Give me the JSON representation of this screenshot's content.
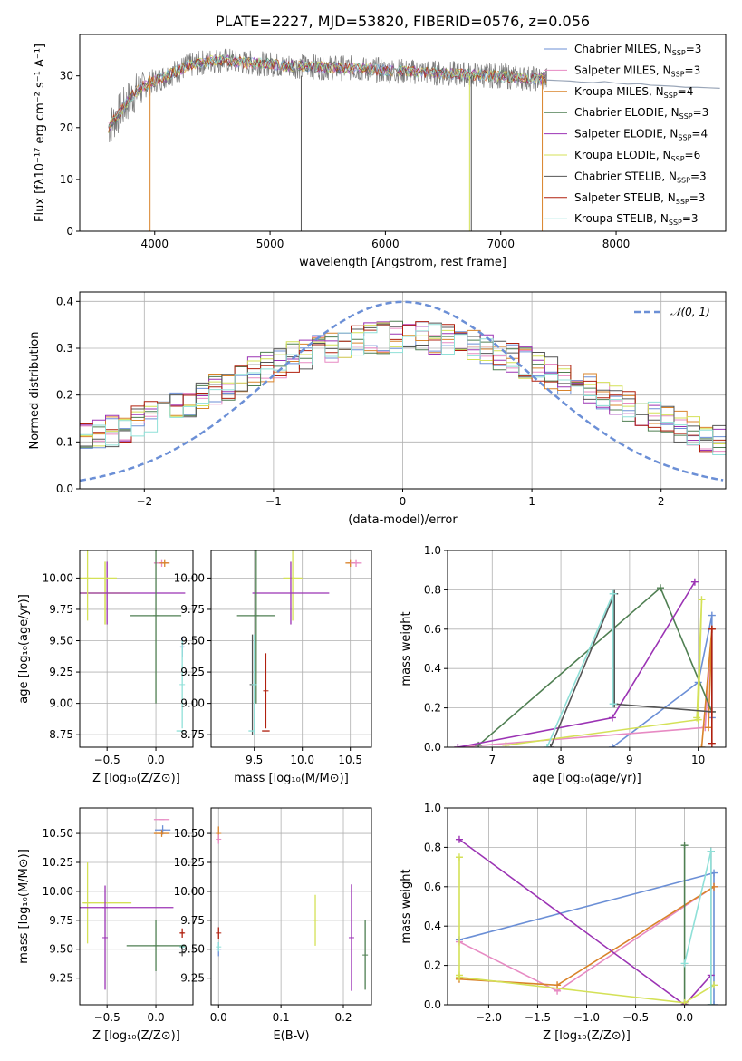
{
  "title": "PLATE=2227, MJD=53820, FIBERID=0576, z=0.056",
  "colors": {
    "chabrier_miles": "#6b8fd6",
    "salpeter_miles": "#e78ac3",
    "kroupa_miles": "#d9832a",
    "chabrier_elodie": "#4f7f52",
    "salpeter_elodie": "#9b33b4",
    "kroupa_elodie": "#d4e157",
    "chabrier_stelib": "#555555",
    "salpeter_stelib": "#b0200f",
    "kroupa_stelib": "#8fe0d8",
    "gaussian": "#6b8fd6"
  },
  "chart_data": [
    {
      "id": "spectrum",
      "type": "line",
      "title": "PLATE=2227, MJD=53820, FIBERID=0576, z=0.056",
      "xlabel": "wavelength [Angstrom, rest frame]",
      "ylabel": "Flux [fλ10⁻¹⁷ erg cm⁻² s⁻¹ A⁻¹]",
      "xlim": [
        3350,
        8950
      ],
      "ylim": [
        0,
        38
      ],
      "xticks": [
        "4000",
        "5000",
        "6000",
        "7000",
        "8000"
      ],
      "yticks": [
        "0",
        "10",
        "20",
        "30"
      ],
      "legend": [
        {
          "label": "Chabrier MILES, N",
          "sub": "SSP",
          "tail": "=3",
          "color": "#6b8fd6"
        },
        {
          "label": "Salpeter MILES, N",
          "sub": "SSP",
          "tail": "=3",
          "color": "#e78ac3"
        },
        {
          "label": "Kroupa MILES, N",
          "sub": "SSP",
          "tail": "=4",
          "color": "#d9832a"
        },
        {
          "label": "Chabrier ELODIE, N",
          "sub": "SSP",
          "tail": "=3",
          "color": "#4f7f52"
        },
        {
          "label": "Salpeter ELODIE, N",
          "sub": "SSP",
          "tail": "=4",
          "color": "#9b33b4"
        },
        {
          "label": "Kroupa ELODIE, N",
          "sub": "SSP",
          "tail": "=6",
          "color": "#d4e157"
        },
        {
          "label": "Chabrier STELIB, N",
          "sub": "SSP",
          "tail": "=3",
          "color": "#555555"
        },
        {
          "label": "Salpeter STELIB, N",
          "sub": "SSP",
          "tail": "=3",
          "color": "#b0200f"
        },
        {
          "label": "Kroupa STELIB, N",
          "sub": "SSP",
          "tail": "=3",
          "color": "#8fe0d8"
        }
      ],
      "continuum": {
        "x": [
          3600,
          3700,
          3800,
          3900,
          4000,
          4100,
          4200,
          4300,
          4400,
          4500,
          4600,
          4700,
          4800,
          4900,
          5000,
          5100,
          5200,
          5300,
          5400,
          5500,
          5600,
          5700,
          5800,
          5900,
          6000,
          6100,
          6200,
          6300,
          6400,
          6500,
          6600,
          6700,
          6800,
          6900,
          7000,
          7100,
          7200,
          7300,
          7400
        ],
        "y": [
          20,
          23,
          26,
          28,
          29,
          30,
          31,
          32,
          32.5,
          33,
          33,
          32.8,
          32.5,
          32.5,
          32.3,
          32,
          32,
          31.8,
          31.8,
          31.6,
          31.5,
          31.5,
          31.3,
          31.2,
          31,
          31,
          30.8,
          30.8,
          30.6,
          30.5,
          30.4,
          30.3,
          30.2,
          30.1,
          30,
          29.8,
          29.6,
          29.5,
          29.3
        ]
      },
      "data_end_x": 7400,
      "model_extension": {
        "x": [
          7400,
          7500,
          7600,
          7700,
          7800,
          7900,
          8000,
          8100,
          8200,
          8300,
          8400,
          8500,
          8600,
          8700,
          8800,
          8900
        ],
        "y": [
          29.2,
          29.1,
          29,
          28.8,
          28.7,
          28.9,
          28.6,
          28.4,
          28.5,
          28.2,
          28.1,
          28,
          27.8,
          27.8,
          27.7,
          27.6
        ]
      },
      "drops": [
        {
          "x": 3960,
          "color": "#d9832a"
        },
        {
          "x": 5270,
          "color": "#555555"
        },
        {
          "x": 6730,
          "color": "#d4e157"
        },
        {
          "x": 6745,
          "color": "#555555"
        },
        {
          "x": 7360,
          "color": "#d9832a"
        }
      ]
    },
    {
      "id": "residuals",
      "type": "histogram",
      "xlabel": "(data-model)/error",
      "ylabel": "Normed distribution",
      "xlim": [
        -2.5,
        2.5
      ],
      "ylim": [
        0,
        0.42
      ],
      "xticks": [
        "−2",
        "−1",
        "0",
        "1",
        "2"
      ],
      "yticks": [
        "0.0",
        "0.1",
        "0.2",
        "0.3",
        "0.4"
      ],
      "legend": [
        {
          "label": "𝒩(0, 1)",
          "color": "#6b8fd6"
        }
      ],
      "bin_width": 0.1
    },
    {
      "id": "age_vs_Z",
      "type": "errorbar",
      "xlabel": "Z [log₁₀(Z/Z⊙)]",
      "ylabel": "age  [log₁₀(age/yr)]",
      "xlim": [
        -0.78,
        0.38
      ],
      "ylim": [
        8.65,
        10.22
      ],
      "xticks": [
        "−0.5",
        "0.0"
      ],
      "yticks": [
        "8.75",
        "9.00",
        "9.25",
        "9.50",
        "9.75",
        "10.00"
      ],
      "points": [
        {
          "x": 0.06,
          "y": 10.12,
          "xerr": 0.08,
          "yerr": 0.03,
          "color": "#e78ac3"
        },
        {
          "x": 0.09,
          "y": 10.12,
          "xerr": 0.05,
          "yerr": 0.03,
          "color": "#d9832a"
        },
        {
          "x": -0.52,
          "y": 9.88,
          "xerr": 0.25,
          "yerr": 0.25,
          "color": "#d4e157"
        },
        {
          "x": -0.52,
          "y": 9.88,
          "xerr": 0.25,
          "yerr": 0.25,
          "color": "#d4e157"
        },
        {
          "x": -0.5,
          "y": 9.88,
          "xerr": 0.8,
          "yerr": 0.25,
          "color": "#9b33b4"
        },
        {
          "x": 0.0,
          "y": 9.7,
          "xerr": 0.26,
          "yerr": 0.7,
          "color": "#4f7f52"
        },
        {
          "x": 0.27,
          "y": 9.45,
          "xerr": 0.02,
          "yerr": 0.08,
          "color": "#6b8fd6"
        },
        {
          "x": 0.27,
          "y": 9.15,
          "xerr": 0.0,
          "yerr": 0.35,
          "color": "#8fe0d8"
        },
        {
          "x": 0.25,
          "y": 8.78,
          "xerr": 0.04,
          "yerr": 0.0,
          "color": "#8fe0d8"
        },
        {
          "x": -0.7,
          "y": 10.0,
          "xerr": 0.3,
          "yerr": 0.34,
          "color": "#d4e157"
        }
      ]
    },
    {
      "id": "age_vs_mass",
      "type": "errorbar",
      "xlabel": "mass [log₁₀(M/M⊙)]",
      "ylabel": "",
      "xlim": [
        9.05,
        10.72
      ],
      "ylim": [
        8.65,
        10.22
      ],
      "xticks": [
        "9.5",
        "10.0",
        "10.5"
      ],
      "yticks": [
        "8.75",
        "9.00",
        "9.25",
        "9.50",
        "9.75",
        "10.00"
      ],
      "points": [
        {
          "x": 10.5,
          "y": 10.12,
          "xerr": 0.05,
          "yerr": 0.03,
          "color": "#d9832a"
        },
        {
          "x": 10.56,
          "y": 10.12,
          "xerr": 0.06,
          "yerr": 0.03,
          "color": "#e78ac3"
        },
        {
          "x": 9.9,
          "y": 10.0,
          "xerr": 0.1,
          "yerr": 0.34,
          "color": "#d4e157"
        },
        {
          "x": 9.88,
          "y": 9.88,
          "xerr": 0.4,
          "yerr": 0.25,
          "color": "#9b33b4"
        },
        {
          "x": 9.52,
          "y": 9.7,
          "xerr": 0.2,
          "yerr": 0.7,
          "color": "#4f7f52"
        },
        {
          "x": 9.48,
          "y": 9.15,
          "xerr": 0.0,
          "yerr": 0.4,
          "color": "#555555"
        },
        {
          "x": 9.5,
          "y": 9.15,
          "xerr": 0.0,
          "yerr": 0.4,
          "color": "#8fe0d8"
        },
        {
          "x": 9.62,
          "y": 8.78,
          "xerr": 0.04,
          "yerr": 0.0,
          "color": "#b0200f"
        },
        {
          "x": 9.47,
          "y": 8.78,
          "xerr": 0.03,
          "yerr": 0.0,
          "color": "#8fe0d8"
        },
        {
          "x": 9.62,
          "y": 9.1,
          "xerr": 0.0,
          "yerr": 0.3,
          "color": "#b0200f"
        }
      ]
    },
    {
      "id": "massweight_vs_age",
      "type": "line",
      "xlabel": "age  [log₁₀(age/yr)]",
      "ylabel": "mass weight",
      "xlim": [
        6.35,
        10.4
      ],
      "ylim": [
        0,
        1.0
      ],
      "xticks": [
        "7",
        "8",
        "9",
        "10"
      ],
      "yticks": [
        "0.0",
        "0.2",
        "0.4",
        "0.6",
        "0.8",
        "1.0"
      ],
      "series": [
        {
          "color": "#6b8fd6",
          "x": [
            8.75,
            10.0,
            10.2,
            10.2
          ],
          "y": [
            0.0,
            0.33,
            0.67,
            0.15
          ]
        },
        {
          "color": "#e78ac3",
          "x": [
            6.5,
            10.1,
            10.2
          ],
          "y": [
            0.0,
            0.1,
            0.6
          ]
        },
        {
          "color": "#d9832a",
          "x": [
            10.05,
            10.2,
            10.15,
            10.2
          ],
          "y": [
            0.0,
            0.6,
            0.1,
            0.6
          ]
        },
        {
          "color": "#4f7f52",
          "x": [
            6.8,
            9.45,
            10.2
          ],
          "y": [
            0.01,
            0.81,
            0.18
          ]
        },
        {
          "color": "#9b33b4",
          "x": [
            6.5,
            8.75,
            9.95
          ],
          "y": [
            0.0,
            0.15,
            0.84
          ]
        },
        {
          "color": "#d4e157",
          "x": [
            7.2,
            10.0,
            10.05,
            9.98
          ],
          "y": [
            0.01,
            0.14,
            0.75,
            0.15
          ]
        },
        {
          "color": "#555555",
          "x": [
            7.85,
            8.78,
            8.78,
            10.2
          ],
          "y": [
            0.0,
            0.78,
            0.22,
            0.18
          ]
        },
        {
          "color": "#b0200f",
          "x": [
            10.2,
            10.2
          ],
          "y": [
            0.02,
            0.6
          ]
        },
        {
          "color": "#8fe0d8",
          "x": [
            7.8,
            8.76,
            8.76
          ],
          "y": [
            0.0,
            0.78,
            0.22
          ]
        }
      ]
    },
    {
      "id": "mass_vs_Z",
      "type": "errorbar",
      "xlabel": "Z [log₁₀(Z/Z⊙)]",
      "ylabel": "mass [log₁₀(M/M⊙)]",
      "xlim": [
        -0.78,
        0.38
      ],
      "ylim": [
        9.02,
        10.72
      ],
      "xticks": [
        "−0.5",
        "0.0"
      ],
      "yticks": [
        "9.25",
        "9.50",
        "9.75",
        "10.00",
        "10.25",
        "10.50"
      ],
      "points": [
        {
          "x": 0.06,
          "y": 10.62,
          "xerr": 0.08,
          "yerr": 0.0,
          "color": "#e78ac3"
        },
        {
          "x": 0.07,
          "y": 10.53,
          "xerr": 0.08,
          "yerr": 0.04,
          "color": "#6b8fd6"
        },
        {
          "x": 0.06,
          "y": 10.5,
          "xerr": 0.08,
          "yerr": 0.03,
          "color": "#d9832a"
        },
        {
          "x": -0.5,
          "y": 9.9,
          "xerr": 0.25,
          "yerr": 0.0,
          "color": "#d4e157"
        },
        {
          "x": -0.7,
          "y": 9.9,
          "xerr": 0.0,
          "yerr": 0.35,
          "color": "#d4e157"
        },
        {
          "x": -0.52,
          "y": 9.86,
          "xerr": 0.7,
          "yerr": 0.0,
          "color": "#9b33b4"
        },
        {
          "x": -0.52,
          "y": 9.6,
          "xerr": 0.0,
          "yerr": 0.45,
          "color": "#9b33b4"
        },
        {
          "x": 0.0,
          "y": 9.53,
          "xerr": 0.3,
          "yerr": 0.22,
          "color": "#4f7f52"
        },
        {
          "x": 0.27,
          "y": 9.47,
          "xerr": 0.03,
          "yerr": 0.03,
          "color": "#555555"
        },
        {
          "x": 0.27,
          "y": 9.64,
          "xerr": 0.02,
          "yerr": 0.04,
          "color": "#b0200f"
        },
        {
          "x": 0.27,
          "y": 9.52,
          "xerr": 0.02,
          "yerr": 0.02,
          "color": "#8fe0d8"
        }
      ]
    },
    {
      "id": "mass_vs_ebv",
      "type": "errorbar",
      "xlabel": "E(B-V)",
      "ylabel": "",
      "xlim": [
        -0.012,
        0.245
      ],
      "ylim": [
        9.02,
        10.72
      ],
      "xticks": [
        "0.0",
        "0.1",
        "0.2"
      ],
      "yticks": [
        "9.25",
        "9.50",
        "9.75",
        "10.00",
        "10.25",
        "10.50"
      ],
      "points": [
        {
          "x": 0.0,
          "y": 10.5,
          "xerr": 0.0,
          "yerr": 0.06,
          "color": "#d9832a"
        },
        {
          "x": 0.0,
          "y": 10.45,
          "xerr": 0.0,
          "yerr": 0.04,
          "color": "#e78ac3"
        },
        {
          "x": 0.0,
          "y": 9.64,
          "xerr": 0.0,
          "yerr": 0.05,
          "color": "#b0200f"
        },
        {
          "x": 0.0,
          "y": 9.5,
          "xerr": 0.0,
          "yerr": 0.06,
          "color": "#6b8fd6"
        },
        {
          "x": 0.0,
          "y": 9.52,
          "xerr": 0.0,
          "yerr": 0.04,
          "color": "#8fe0d8"
        },
        {
          "x": 0.155,
          "y": 9.75,
          "xerr": 0.0,
          "yerr": 0.22,
          "color": "#d4e157"
        },
        {
          "x": 0.213,
          "y": 9.6,
          "xerr": 0.0,
          "yerr": 0.46,
          "color": "#9b33b4"
        },
        {
          "x": 0.235,
          "y": 9.45,
          "xerr": 0.0,
          "yerr": 0.3,
          "color": "#4f7f52"
        }
      ]
    },
    {
      "id": "massweight_vs_Z",
      "type": "line",
      "xlabel": "Z [log₁₀(Z/Z⊙)]",
      "ylabel": "mass weight",
      "xlim": [
        -2.42,
        0.42
      ],
      "ylim": [
        0,
        1.0
      ],
      "xticks": [
        "−2.0",
        "−1.5",
        "−1.0",
        "−0.5",
        "0.0"
      ],
      "yticks": [
        "0.0",
        "0.2",
        "0.4",
        "0.6",
        "0.8",
        "1.0"
      ],
      "series": [
        {
          "color": "#6b8fd6",
          "x": [
            -2.3,
            0.3,
            0.3
          ],
          "y": [
            0.33,
            0.67,
            0.0
          ]
        },
        {
          "color": "#e78ac3",
          "x": [
            -2.3,
            -1.3,
            0.3
          ],
          "y": [
            0.32,
            0.07,
            0.6
          ]
        },
        {
          "color": "#d9832a",
          "x": [
            -2.3,
            -1.3,
            0.3
          ],
          "y": [
            0.13,
            0.1,
            0.6
          ]
        },
        {
          "color": "#4f7f52",
          "x": [
            0.0,
            0.0
          ],
          "y": [
            0.0,
            0.81
          ]
        },
        {
          "color": "#9b33b4",
          "x": [
            -2.3,
            0.0,
            0.27
          ],
          "y": [
            0.84,
            0.0,
            0.15
          ]
        },
        {
          "color": "#d4e157",
          "x": [
            -2.3,
            -2.3,
            -2.3,
            0.0,
            0.3
          ],
          "y": [
            0.75,
            0.15,
            0.14,
            0.01,
            0.1
          ]
        },
        {
          "color": "#555555",
          "x": [
            0.27,
            0.27
          ],
          "y": [
            0.0,
            0.78
          ]
        },
        {
          "color": "#8fe0d8",
          "x": [
            0.0,
            0.27,
            0.27
          ],
          "y": [
            0.21,
            0.78,
            0.0
          ]
        }
      ]
    }
  ]
}
